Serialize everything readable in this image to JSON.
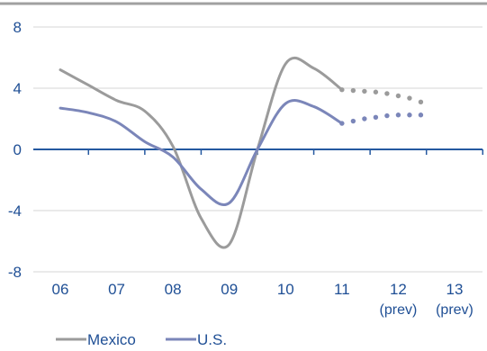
{
  "chart_data": {
    "type": "line",
    "title": "",
    "xlabel": "",
    "ylabel": "",
    "categories": [
      "06",
      "07",
      "08",
      "09",
      "10",
      "11",
      "12",
      "13"
    ],
    "category_sublabels": [
      "",
      "",
      "",
      "",
      "",
      "",
      "(prev)",
      "(prev)"
    ],
    "ylim": [
      -8,
      8
    ],
    "yticks": [
      "8",
      "4",
      "0",
      "-4",
      "-8"
    ],
    "grid": true,
    "legend_position": "bottom-left",
    "series": [
      {
        "name": "Mexico",
        "color": "#9b9b9b",
        "x": [
          2006.0,
          2006.5,
          2007.0,
          2007.5,
          2008.0,
          2008.5,
          2009.0,
          2009.5,
          2010.0,
          2010.5,
          2011.0
        ],
        "values": [
          5.2,
          4.2,
          3.2,
          2.5,
          0.2,
          -4.5,
          -6.2,
          0.0,
          5.6,
          5.3,
          3.9
        ],
        "forecast_x": [
          2011.0,
          2011.2,
          2011.4,
          2011.6,
          2011.8,
          2012.0,
          2012.2,
          2012.4
        ],
        "forecast_values": [
          3.9,
          3.85,
          3.8,
          3.75,
          3.65,
          3.5,
          3.35,
          3.1
        ]
      },
      {
        "name": "U.S.",
        "color": "#7b86b9",
        "x": [
          2006.0,
          2006.5,
          2007.0,
          2007.5,
          2008.0,
          2008.5,
          2009.0,
          2009.5,
          2010.0,
          2010.5,
          2011.0
        ],
        "values": [
          2.7,
          2.4,
          1.8,
          0.5,
          -0.5,
          -2.6,
          -3.5,
          0.0,
          3.0,
          2.8,
          1.7
        ],
        "forecast_x": [
          2011.0,
          2011.2,
          2011.4,
          2011.6,
          2011.8,
          2012.0,
          2012.2,
          2012.4
        ],
        "forecast_values": [
          1.7,
          1.85,
          2.0,
          2.1,
          2.2,
          2.25,
          2.25,
          2.25
        ]
      }
    ]
  },
  "colors": {
    "zero_axis": "#2559a0",
    "grid": "#d6d6d6",
    "tick_text": "#1f4f95",
    "top_border": "#a0a0a0"
  }
}
